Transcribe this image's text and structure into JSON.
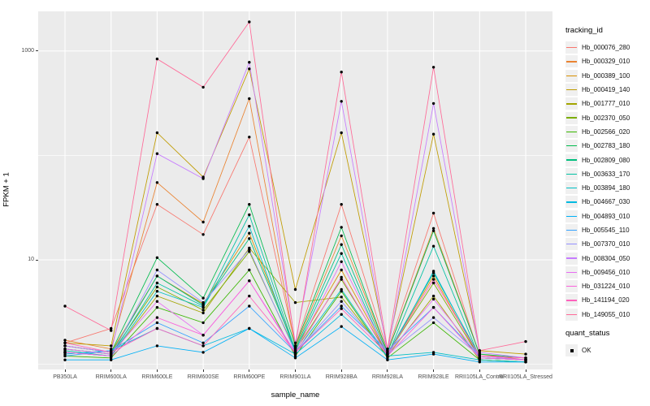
{
  "colors": {
    "panel_background": "#EBEBEB",
    "grid": "#FFFFFF",
    "point": "#000000",
    "tick_text": "#4D4D4D",
    "legend_key_background": "#F0F0F0"
  },
  "legend": {
    "tracking_title": "tracking_id",
    "quant_title": "quant_status",
    "quant_ok_label": "OK"
  },
  "chart_data": {
    "type": "line",
    "title": "",
    "xlabel": "sample_name",
    "ylabel": "FPKM + 1",
    "x_categories": [
      "PB350LA",
      "RRIM600LA",
      "RRIM600LE",
      "RRIM600SE",
      "RRIM600PE",
      "RRIM901LA",
      "RRIM928BA",
      "RRIM928LA",
      "RRIM928LE",
      "RRII105LA_Control",
      "RRII105LA_Stressed"
    ],
    "y_axis": {
      "scale": "log10",
      "tick_labels": [
        "1000",
        "10"
      ],
      "tick_values": [
        1000,
        10
      ],
      "minor_grid_values": [
        100,
        1
      ],
      "range_log10": [
        -0.05,
        3.38
      ]
    },
    "legend_position": "right",
    "legend_title": "tracking_id",
    "quant_status_legend": {
      "title": "quant_status",
      "items": [
        "OK"
      ]
    },
    "series": [
      {
        "name": "Hb_000076_280",
        "color": "#F8766D",
        "values": [
          1.6,
          2.2,
          34,
          17.5,
          150,
          1.5,
          34,
          1.35,
          28,
          1.2,
          1.15
        ]
      },
      {
        "name": "Hb_000329_010",
        "color": "#EA8331",
        "values": [
          1.7,
          1.4,
          55,
          23,
          350,
          1.45,
          17,
          1.3,
          20,
          1.25,
          1.1
        ]
      },
      {
        "name": "Hb_000389_100",
        "color": "#D89000",
        "values": [
          1.5,
          1.3,
          7,
          3.8,
          18,
          1.4,
          8,
          1.25,
          7,
          1.15,
          1.1
        ]
      },
      {
        "name": "Hb_000419_140",
        "color": "#C09B00",
        "values": [
          1.6,
          1.5,
          165,
          62,
          675,
          5.2,
          165,
          1.4,
          160,
          1.35,
          1.25
        ]
      },
      {
        "name": "Hb_001777_010",
        "color": "#A3A500",
        "values": [
          1.3,
          1.2,
          4.5,
          3.1,
          13,
          3.9,
          4.4,
          1.2,
          4.5,
          1.1,
          1.05
        ]
      },
      {
        "name": "Hb_002370_050",
        "color": "#7CAE00",
        "values": [
          1.4,
          1.25,
          5.5,
          3.3,
          12,
          1.35,
          6.5,
          1.25,
          6,
          1.15,
          1.1
        ]
      },
      {
        "name": "Hb_002566_020",
        "color": "#39B600",
        "values": [
          1.2,
          1.15,
          3.5,
          2.5,
          8,
          1.2,
          5,
          1.15,
          2.5,
          1.1,
          1.05
        ]
      },
      {
        "name": "Hb_002783_180",
        "color": "#00BB4E",
        "values": [
          1.5,
          1.3,
          10.5,
          4.3,
          34,
          1.5,
          20.5,
          1.3,
          19,
          1.25,
          1.15
        ]
      },
      {
        "name": "Hb_002809_080",
        "color": "#00BF7D",
        "values": [
          1.4,
          1.25,
          7,
          3.7,
          16,
          1.4,
          14,
          1.25,
          7.5,
          1.2,
          1.1
        ]
      },
      {
        "name": "Hb_003633_170",
        "color": "#00C1A3",
        "values": [
          1.35,
          1.2,
          6,
          3.6,
          27,
          1.35,
          11.5,
          1.2,
          13.5,
          1.15,
          1.1
        ]
      },
      {
        "name": "Hb_003894_180",
        "color": "#00BFC4",
        "values": [
          1.3,
          1.2,
          5,
          3.5,
          21,
          1.3,
          5.2,
          1.2,
          1.3,
          1.1,
          1.05
        ]
      },
      {
        "name": "Hb_004667_030",
        "color": "#00BAE0",
        "values": [
          1.25,
          1.35,
          2.2,
          1.5,
          2.2,
          1.25,
          3,
          1.2,
          7.8,
          1.15,
          1.1
        ]
      },
      {
        "name": "Hb_004893_010",
        "color": "#00B0F6",
        "values": [
          1.1,
          1.1,
          1.5,
          1.3,
          2.2,
          1.15,
          2.3,
          1.1,
          1.25,
          1.05,
          1.05
        ]
      },
      {
        "name": "Hb_005545_110",
        "color": "#35A2FF",
        "values": [
          1.2,
          1.35,
          2.5,
          1.6,
          3.6,
          1.3,
          3.6,
          1.35,
          3.5,
          1.2,
          1.1
        ]
      },
      {
        "name": "Hb_007370_010",
        "color": "#9590FF",
        "values": [
          1.3,
          1.2,
          8,
          3.9,
          12.5,
          1.3,
          4,
          1.25,
          2.8,
          1.2,
          1.1
        ]
      },
      {
        "name": "Hb_008304_050",
        "color": "#C77CFF",
        "values": [
          1.5,
          1.3,
          104,
          60,
          780,
          1.6,
          330,
          1.3,
          315,
          1.3,
          1.15
        ]
      },
      {
        "name": "Hb_009456_010",
        "color": "#E76BF3",
        "values": [
          1.4,
          1.25,
          4,
          1.9,
          6.3,
          1.3,
          9.6,
          1.25,
          4.2,
          1.2,
          1.1
        ]
      },
      {
        "name": "Hb_031224_010",
        "color": "#FA62DB",
        "values": [
          1.3,
          1.2,
          2.8,
          1.9,
          6.3,
          1.25,
          6.8,
          1.2,
          3.5,
          1.15,
          1.1
        ]
      },
      {
        "name": "Hb_141194_020",
        "color": "#FF62BC",
        "values": [
          1.6,
          1.3,
          2.2,
          1.5,
          4.5,
          1.3,
          3.4,
          1.25,
          6.5,
          1.2,
          1.15
        ]
      },
      {
        "name": "Hb_149055_010",
        "color": "#FF6A98",
        "values": [
          3.6,
          2.1,
          840,
          450,
          1900,
          1.5,
          630,
          1.4,
          700,
          1.35,
          1.65
        ]
      }
    ]
  }
}
